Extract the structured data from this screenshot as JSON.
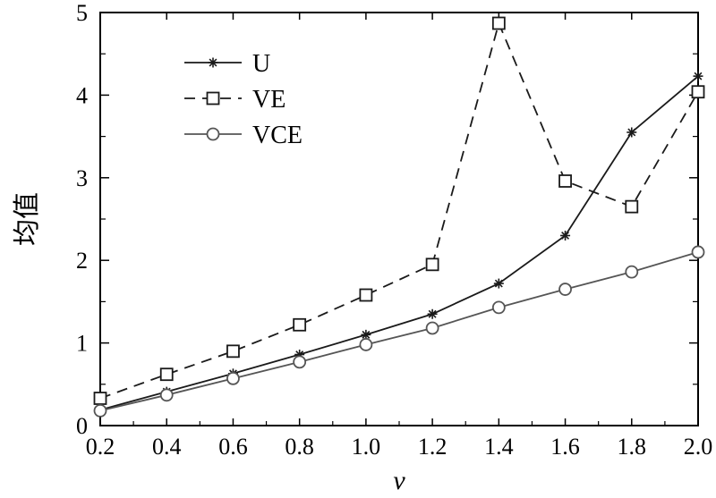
{
  "chart_data": {
    "type": "line",
    "title": "",
    "xlabel": "v",
    "ylabel": "均值",
    "xlim": [
      0.2,
      2.0
    ],
    "ylim": [
      0,
      5
    ],
    "x_ticks": [
      "0.2",
      "0.4",
      "0.6",
      "0.8",
      "1.0",
      "1.2",
      "1.4",
      "1.6",
      "1.8",
      "2.0"
    ],
    "y_ticks": [
      "0",
      "1",
      "2",
      "3",
      "4",
      "5"
    ],
    "grid": false,
    "legend_position": "top-left",
    "x": [
      0.2,
      0.4,
      0.6,
      0.8,
      1.0,
      1.2,
      1.4,
      1.6,
      1.8,
      2.0
    ],
    "series": [
      {
        "name": "U",
        "values": [
          0.19,
          0.41,
          0.63,
          0.86,
          1.1,
          1.35,
          1.72,
          2.3,
          3.55,
          4.23
        ],
        "color": "#1a1a1a",
        "dash": "solid",
        "marker": "asterisk"
      },
      {
        "name": "VE",
        "values": [
          0.33,
          0.62,
          0.9,
          1.22,
          1.58,
          1.95,
          4.87,
          2.96,
          2.65,
          4.04
        ],
        "color": "#1a1a1a",
        "dash": "dashed",
        "marker": "square"
      },
      {
        "name": "VCE",
        "values": [
          0.18,
          0.37,
          0.57,
          0.77,
          0.98,
          1.18,
          1.43,
          1.65,
          1.86,
          2.1
        ],
        "color": "#555555",
        "dash": "solid",
        "marker": "circle"
      }
    ]
  }
}
